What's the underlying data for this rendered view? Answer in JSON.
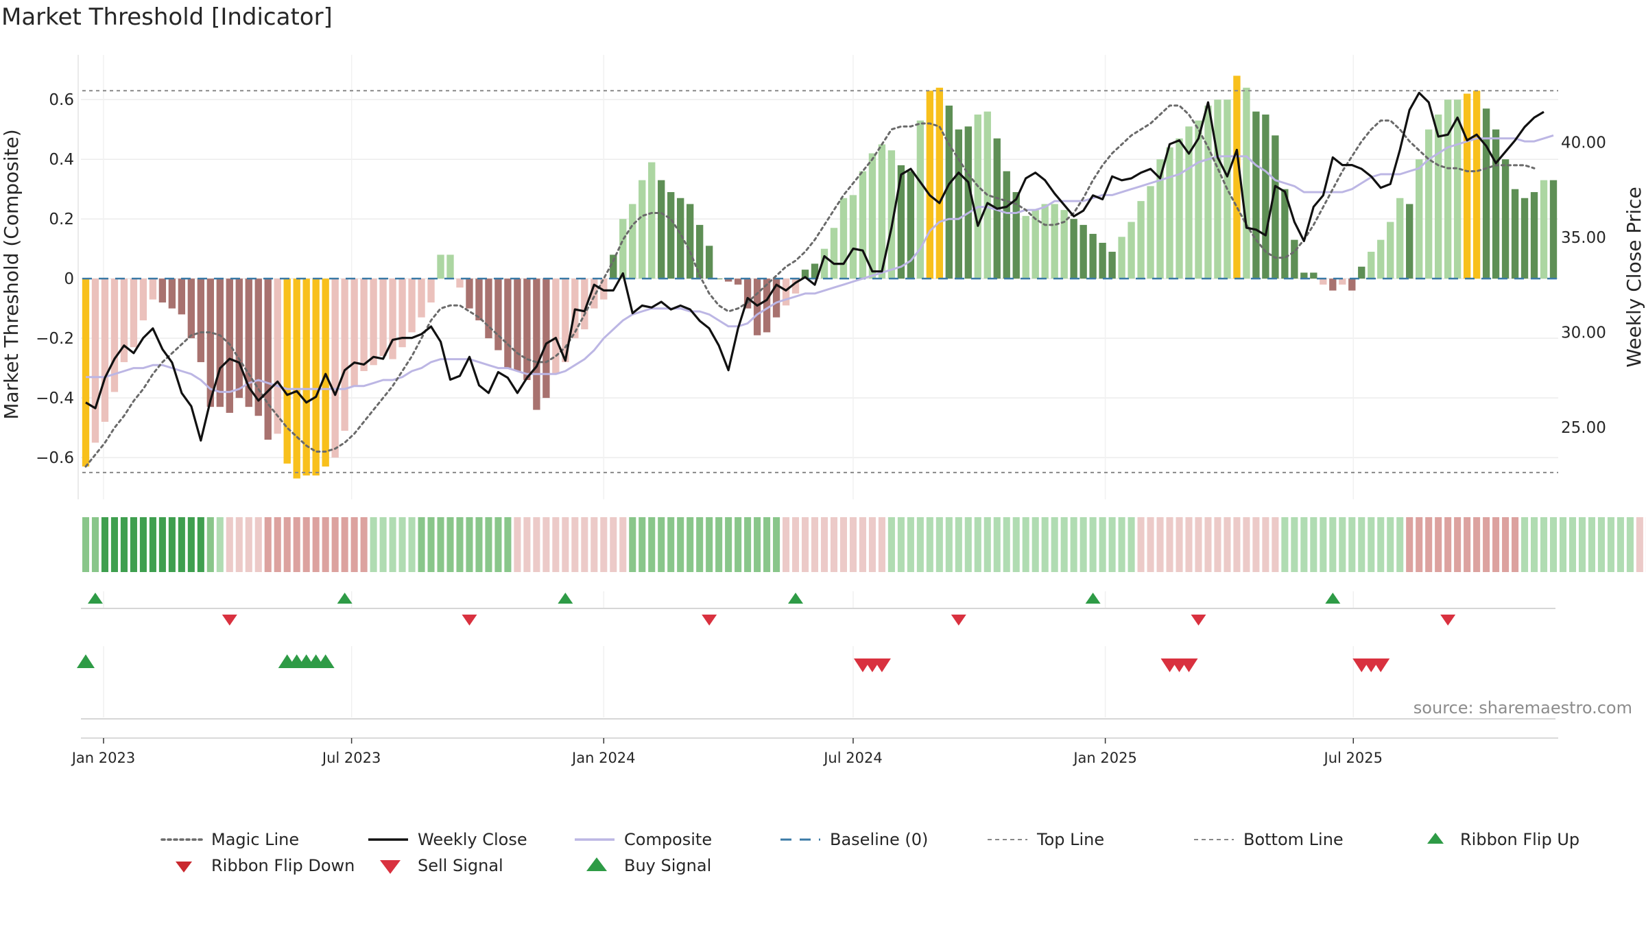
{
  "chart_data": {
    "type": "bar",
    "title": "Market Threshold [Indicator]",
    "ylabel": "Market Threshold (Composite)",
    "y2label": "Weekly Close Price",
    "source": "source: sharemaestro.com",
    "ylim": [
      -0.74,
      0.75
    ],
    "y2lim": [
      21.2,
      44.6
    ],
    "yticks": [
      0.6,
      0.4,
      0.2,
      0,
      -0.2,
      -0.4,
      -0.6
    ],
    "ytick_labels": [
      "0.6",
      "0.4",
      "0.2",
      "0",
      "−0.2",
      "−0.4",
      "−0.6"
    ],
    "y2ticks": [
      40,
      35,
      30,
      25
    ],
    "y2tick_labels": [
      "40.00",
      "35.00",
      "30.00",
      "25.00"
    ],
    "x_start": "2022-12-19",
    "x_end": "2025-09-29",
    "xticks": [
      {
        "date": "2023-01-01",
        "label": "Jan 2023"
      },
      {
        "date": "2023-07-01",
        "label": "Jul 2023"
      },
      {
        "date": "2024-01-01",
        "label": "Jan 2024"
      },
      {
        "date": "2024-07-01",
        "label": "Jul 2024"
      },
      {
        "date": "2025-01-01",
        "label": "Jan 2025"
      },
      {
        "date": "2025-07-01",
        "label": "Jul 2025"
      }
    ],
    "top_line": 0.63,
    "bottom_line": -0.65,
    "grid": true,
    "legend_position": "bottom",
    "colors": {
      "strong_pos": "#5e8f55",
      "weak_pos": "#acd6a2",
      "strong_neg": "#a8726f",
      "weak_neg": "#ebc1bc",
      "extreme": "#f8c01c",
      "weekly_close": "#111111",
      "composite": "#bcb6e4",
      "magic_line": "#6a6a6a",
      "baseline": "#3a7aa6",
      "threshold_line": "#888888",
      "buy": "#2e9b46",
      "sell": "#d9313f"
    },
    "composite": [
      -0.63,
      -0.55,
      -0.48,
      -0.38,
      -0.28,
      -0.23,
      -0.14,
      -0.07,
      -0.08,
      -0.1,
      -0.12,
      -0.2,
      -0.28,
      -0.43,
      -0.43,
      -0.45,
      -0.4,
      -0.43,
      -0.46,
      -0.54,
      -0.52,
      -0.62,
      -0.67,
      -0.66,
      -0.66,
      -0.63,
      -0.6,
      -0.51,
      -0.36,
      -0.31,
      -0.29,
      -0.26,
      -0.27,
      -0.23,
      -0.18,
      -0.13,
      -0.08,
      0.08,
      0.08,
      -0.03,
      -0.1,
      -0.14,
      -0.2,
      -0.24,
      -0.3,
      -0.31,
      -0.34,
      -0.44,
      -0.4,
      -0.32,
      -0.28,
      -0.2,
      -0.17,
      -0.1,
      -0.07,
      0.08,
      0.2,
      0.25,
      0.33,
      0.39,
      0.33,
      0.29,
      0.27,
      0.25,
      0.18,
      0.11,
      0,
      -0.01,
      -0.02,
      -0.1,
      -0.19,
      -0.18,
      -0.13,
      -0.09,
      -0.05,
      0.03,
      0.05,
      0.1,
      0.17,
      0.27,
      0.28,
      0.36,
      0.42,
      0.45,
      0.43,
      0.38,
      0.36,
      0.53,
      0.63,
      0.64,
      0.58,
      0.5,
      0.51,
      0.55,
      0.56,
      0.47,
      0.36,
      0.29,
      0.21,
      0.23,
      0.25,
      0.25,
      0.23,
      0.2,
      0.18,
      0.15,
      0.12,
      0.09,
      0.14,
      0.19,
      0.26,
      0.31,
      0.4,
      0.44,
      0.47,
      0.51,
      0.53,
      0.58,
      0.6,
      0.6,
      0.68,
      0.64,
      0.56,
      0.55,
      0.48,
      0.3,
      0.13,
      0.02,
      0.02,
      -0.02,
      -0.04,
      -0.02,
      -0.04,
      0.04,
      0.09,
      0.13,
      0.19,
      0.27,
      0.25,
      0.4,
      0.5,
      0.55,
      0.6,
      0.6,
      0.62,
      0.63,
      0.57,
      0.5,
      0.4,
      0.3,
      0.27,
      0.29,
      0.33,
      0.33
    ],
    "bar_class": [
      2,
      1,
      1,
      1,
      1,
      1,
      1,
      1,
      3,
      3,
      3,
      3,
      3,
      3,
      3,
      3,
      3,
      3,
      3,
      3,
      1,
      2,
      2,
      2,
      2,
      2,
      1,
      1,
      1,
      1,
      1,
      1,
      1,
      1,
      1,
      1,
      1,
      0,
      0,
      1,
      3,
      3,
      3,
      3,
      3,
      3,
      3,
      3,
      3,
      1,
      1,
      1,
      1,
      1,
      1,
      4,
      0,
      0,
      0,
      0,
      4,
      4,
      4,
      4,
      4,
      4,
      4,
      3,
      3,
      3,
      3,
      3,
      3,
      1,
      1,
      4,
      4,
      0,
      0,
      0,
      0,
      0,
      0,
      0,
      0,
      4,
      4,
      0,
      2,
      2,
      4,
      4,
      4,
      0,
      0,
      4,
      4,
      4,
      0,
      0,
      0,
      0,
      0,
      4,
      4,
      4,
      4,
      4,
      0,
      0,
      0,
      0,
      0,
      0,
      0,
      0,
      0,
      0,
      0,
      0,
      2,
      0,
      4,
      4,
      4,
      4,
      4,
      4,
      4,
      1,
      3,
      1,
      3,
      4,
      0,
      0,
      0,
      0,
      4,
      0,
      0,
      0,
      0,
      0,
      2,
      2,
      4,
      4,
      4,
      4,
      4,
      4,
      0,
      4
    ],
    "weekly_close": [
      26.3,
      26,
      27.6,
      28.6,
      29.3,
      28.9,
      29.7,
      30.2,
      29.1,
      28.4,
      26.8,
      26.1,
      24.3,
      26.4,
      28.1,
      28.6,
      28.4,
      27.1,
      26.4,
      26.9,
      27.4,
      26.7,
      26.9,
      26.3,
      26.6,
      27.8,
      26.7,
      28,
      28.4,
      28.3,
      28.7,
      28.6,
      29.6,
      29.7,
      29.7,
      29.9,
      30.3,
      29.5,
      27.5,
      27.7,
      28.7,
      27.2,
      26.8,
      27.9,
      27.6,
      26.8,
      27.6,
      28.2,
      29.4,
      29.7,
      28.5,
      31.2,
      31.1,
      32.5,
      32.2,
      32.2,
      33.1,
      31,
      31.4,
      31.3,
      31.6,
      31.2,
      31.4,
      31.2,
      30.6,
      30.2,
      29.3,
      28,
      30.2,
      31.8,
      31.4,
      31.7,
      32.5,
      32.2,
      32.6,
      32.9,
      32.5,
      34,
      33.6,
      33.6,
      34.4,
      34.3,
      33.2,
      33.2,
      35.5,
      38.3,
      38.6,
      37.9,
      37.2,
      36.8,
      37.8,
      38.4,
      37.9,
      35.6,
      36.8,
      36.5,
      36.6,
      37,
      38.1,
      38.4,
      38,
      37.3,
      36.7,
      36.1,
      36.4,
      37.2,
      37,
      38.2,
      38,
      38.1,
      38.4,
      38.6,
      38.1,
      39.9,
      40.1,
      39.4,
      40.2,
      42.1,
      39.2,
      38.2,
      39.6,
      35.5,
      35.4,
      35.1,
      37.7,
      37.4,
      35.8,
      34.8,
      36.6,
      37.2,
      39.2,
      38.8,
      38.8,
      38.6,
      38.2,
      37.6,
      37.8,
      39.6,
      41.7,
      42.6,
      42.1,
      40.3,
      40.4,
      41.3,
      40.1,
      40.4,
      39.8,
      38.9,
      39.5,
      40.1,
      40.8,
      41.3,
      41.6
    ],
    "composite_smooth": [
      -0.33,
      -0.33,
      -0.33,
      -0.32,
      -0.31,
      -0.3,
      -0.3,
      -0.29,
      -0.29,
      -0.3,
      -0.31,
      -0.32,
      -0.34,
      -0.37,
      -0.38,
      -0.38,
      -0.37,
      -0.35,
      -0.34,
      -0.35,
      -0.36,
      -0.37,
      -0.37,
      -0.37,
      -0.37,
      -0.37,
      -0.37,
      -0.37,
      -0.36,
      -0.36,
      -0.35,
      -0.34,
      -0.34,
      -0.33,
      -0.31,
      -0.3,
      -0.28,
      -0.27,
      -0.27,
      -0.27,
      -0.27,
      -0.28,
      -0.29,
      -0.3,
      -0.3,
      -0.31,
      -0.32,
      -0.32,
      -0.32,
      -0.32,
      -0.31,
      -0.29,
      -0.27,
      -0.24,
      -0.2,
      -0.17,
      -0.14,
      -0.12,
      -0.11,
      -0.1,
      -0.1,
      -0.1,
      -0.1,
      -0.11,
      -0.11,
      -0.12,
      -0.14,
      -0.16,
      -0.16,
      -0.15,
      -0.12,
      -0.1,
      -0.08,
      -0.07,
      -0.06,
      -0.05,
      -0.05,
      -0.04,
      -0.03,
      -0.02,
      -0.01,
      0,
      0.01,
      0.02,
      0.03,
      0.04,
      0.06,
      0.1,
      0.16,
      0.19,
      0.2,
      0.2,
      0.22,
      0.24,
      0.24,
      0.23,
      0.22,
      0.22,
      0.23,
      0.23,
      0.24,
      0.26,
      0.26,
      0.26,
      0.26,
      0.27,
      0.28,
      0.28,
      0.29,
      0.3,
      0.31,
      0.32,
      0.33,
      0.34,
      0.35,
      0.37,
      0.39,
      0.4,
      0.41,
      0.41,
      0.41,
      0.41,
      0.38,
      0.36,
      0.33,
      0.32,
      0.31,
      0.29,
      0.29,
      0.29,
      0.29,
      0.29,
      0.3,
      0.32,
      0.34,
      0.35,
      0.35,
      0.35,
      0.36,
      0.37,
      0.4,
      0.42,
      0.44,
      0.45,
      0.46,
      0.47,
      0.47,
      0.47,
      0.47,
      0.47,
      0.46,
      0.46,
      0.47,
      0.48
    ],
    "magic_line": [
      -0.63,
      -0.59,
      -0.55,
      -0.5,
      -0.46,
      -0.41,
      -0.37,
      -0.32,
      -0.28,
      -0.25,
      -0.22,
      -0.19,
      -0.18,
      -0.18,
      -0.19,
      -0.22,
      -0.27,
      -0.32,
      -0.37,
      -0.42,
      -0.46,
      -0.5,
      -0.53,
      -0.56,
      -0.58,
      -0.58,
      -0.57,
      -0.55,
      -0.52,
      -0.48,
      -0.44,
      -0.4,
      -0.36,
      -0.31,
      -0.26,
      -0.2,
      -0.14,
      -0.1,
      -0.09,
      -0.09,
      -0.11,
      -0.13,
      -0.16,
      -0.19,
      -0.22,
      -0.25,
      -0.27,
      -0.28,
      -0.28,
      -0.26,
      -0.23,
      -0.18,
      -0.12,
      -0.06,
      0,
      0.06,
      0.13,
      0.18,
      0.21,
      0.22,
      0.22,
      0.2,
      0.15,
      0.09,
      0.01,
      -0.05,
      -0.09,
      -0.11,
      -0.1,
      -0.08,
      -0.05,
      -0.02,
      0.01,
      0.04,
      0.06,
      0.09,
      0.13,
      0.18,
      0.23,
      0.28,
      0.32,
      0.36,
      0.4,
      0.45,
      0.5,
      0.51,
      0.51,
      0.52,
      0.52,
      0.51,
      0.45,
      0.4,
      0.35,
      0.31,
      0.28,
      0.27,
      0.26,
      0.25,
      0.23,
      0.2,
      0.18,
      0.18,
      0.19,
      0.22,
      0.27,
      0.33,
      0.38,
      0.42,
      0.45,
      0.48,
      0.5,
      0.52,
      0.55,
      0.58,
      0.58,
      0.55,
      0.5,
      0.44,
      0.37,
      0.3,
      0.24,
      0.18,
      0.13,
      0.09,
      0.07,
      0.07,
      0.09,
      0.13,
      0.18,
      0.24,
      0.3,
      0.36,
      0.41,
      0.46,
      0.5,
      0.53,
      0.53,
      0.5,
      0.46,
      0.43,
      0.4,
      0.38,
      0.37,
      0.37,
      0.36,
      0.36,
      0.37,
      0.38,
      0.38,
      0.38,
      0.38,
      0.37
    ],
    "ribbon_levels": [
      2,
      2,
      3,
      3,
      3,
      3,
      3,
      3,
      3,
      3,
      3,
      3,
      3,
      2,
      1,
      -1,
      -1,
      -1,
      -1,
      -2,
      -2,
      -2,
      -2,
      -2,
      -2,
      -2,
      -2,
      -2,
      -2,
      -2,
      1,
      1,
      1,
      1,
      1,
      2,
      2,
      2,
      2,
      2,
      2,
      2,
      2,
      2,
      2,
      -1,
      -1,
      -1,
      -1,
      -1,
      -1,
      -1,
      -1,
      -1,
      -1,
      -1,
      -1,
      2,
      2,
      2,
      2,
      2,
      2,
      2,
      2,
      2,
      2,
      2,
      2,
      2,
      2,
      2,
      2,
      -1,
      -1,
      -1,
      -1,
      -1,
      -1,
      -1,
      -1,
      -1,
      -1,
      -1,
      1,
      1,
      1,
      1,
      1,
      1,
      1,
      1,
      1,
      1,
      1,
      1,
      1,
      1,
      1,
      1,
      1,
      1,
      1,
      1,
      1,
      1,
      1,
      1,
      1,
      1,
      -1,
      -1,
      -1,
      -1,
      -1,
      -1,
      -1,
      -1,
      -1,
      -1,
      -1,
      -1,
      -1,
      -1,
      -1,
      1,
      1,
      1,
      1,
      1,
      1,
      1,
      1,
      1,
      1,
      1,
      1,
      1,
      -2,
      -2,
      -2,
      -2,
      -2,
      -2,
      -2,
      -2,
      -2,
      -2,
      -2,
      -2,
      1,
      1,
      1,
      1,
      1,
      1,
      1,
      1,
      1,
      1,
      1,
      1,
      -1,
      -1,
      -1,
      -1,
      -1,
      -1,
      -1,
      -1,
      -1
    ],
    "ribbon_flip_up": [
      "2022-12-26",
      "2023-06-26",
      "2023-12-04",
      "2024-05-20",
      "2024-12-23",
      "2025-06-16"
    ],
    "ribbon_flip_down": [
      "2023-04-03",
      "2023-09-25",
      "2024-03-18",
      "2024-09-16",
      "2025-03-10",
      "2025-09-08"
    ],
    "buy_signals": [
      "2022-12-19",
      "2023-05-15",
      "2023-05-22",
      "2023-05-29",
      "2023-06-05",
      "2023-06-12"
    ],
    "sell_signals": [
      "2024-07-08",
      "2024-07-15",
      "2024-07-22",
      "2025-02-17",
      "2025-02-24",
      "2025-03-03",
      "2025-07-07",
      "2025-07-14",
      "2025-07-21"
    ],
    "legend": [
      {
        "label": "Magic Line",
        "style": "dotted",
        "color": "#6a6a6a"
      },
      {
        "label": "Weekly Close",
        "style": "line",
        "color": "#111111"
      },
      {
        "label": "Composite",
        "style": "line",
        "color": "#bcb6e4"
      },
      {
        "label": "Baseline (0)",
        "style": "dashed",
        "color": "#3a7aa6"
      },
      {
        "label": "Top Line",
        "style": "dashed-thin",
        "color": "#888888"
      },
      {
        "label": "Bottom Line",
        "style": "dashed-thin",
        "color": "#888888"
      },
      {
        "label": "Ribbon Flip Up",
        "style": "tri-up",
        "color": "#2e9b46"
      },
      {
        "label": "Ribbon Flip Down",
        "style": "tri-down",
        "color": "#c9282e"
      },
      {
        "label": "Sell Signal",
        "style": "tri-down-big",
        "color": "#d9313f"
      },
      {
        "label": "Buy Signal",
        "style": "tri-up-big",
        "color": "#2e9b46"
      }
    ]
  }
}
